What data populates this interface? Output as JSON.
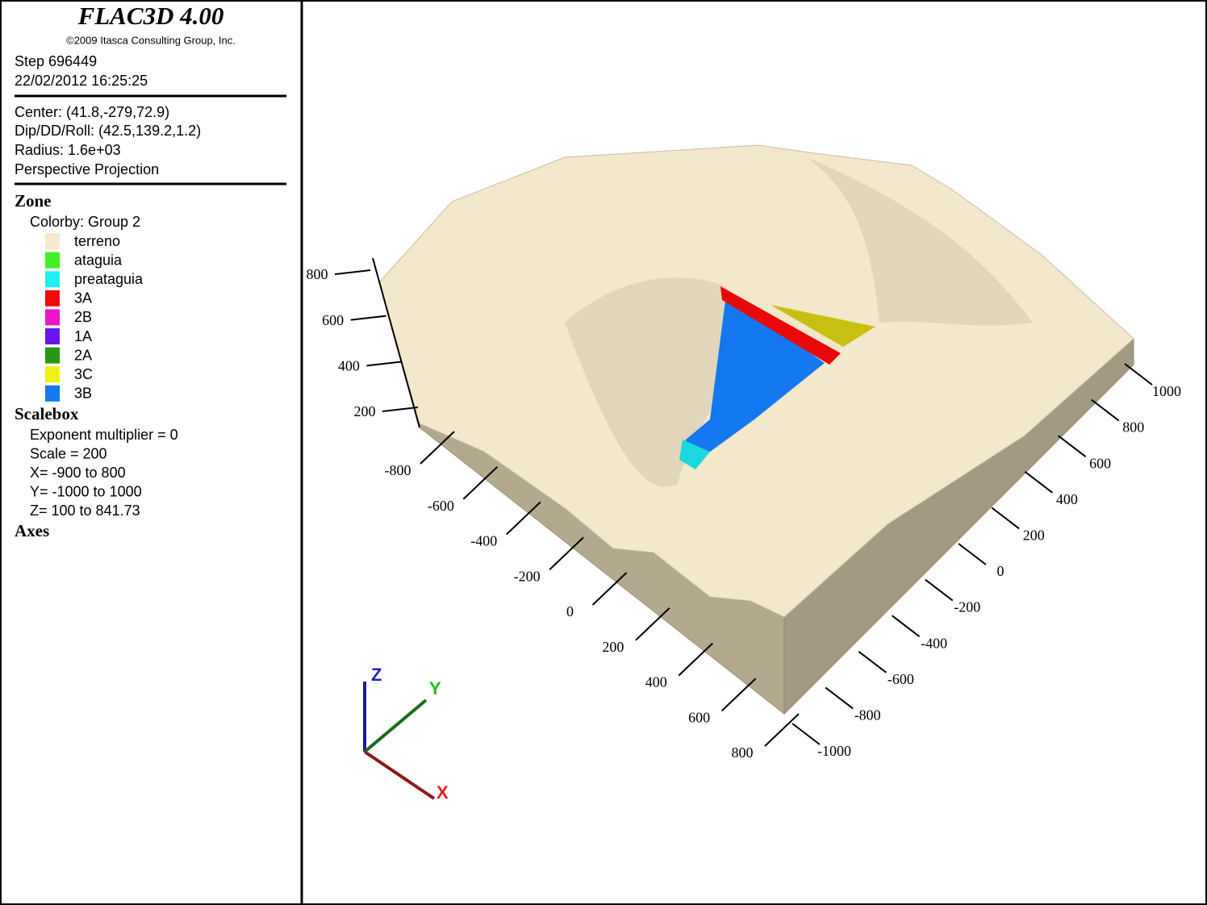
{
  "header": {
    "title": "FLAC3D 4.00",
    "copyright": "©2009 Itasca Consulting Group, Inc.",
    "step": "Step 696449",
    "date": "22/02/2012 16:25:25"
  },
  "view": {
    "lines": [
      "Center: (41.8,-279,72.9)",
      "Dip/DD/Roll: (42.5,139.2,1.2)",
      "Radius: 1.6e+03",
      "Perspective Projection"
    ]
  },
  "zone": {
    "heading": "Zone",
    "colorby": "Colorby: Group 2",
    "legend": [
      {
        "label": "terreno",
        "color": "#f7e9cc"
      },
      {
        "label": "ataguia",
        "color": "#44f025"
      },
      {
        "label": "preataguia",
        "color": "#1cf0f0"
      },
      {
        "label": "3A",
        "color": "#f00a0a"
      },
      {
        "label": "2B",
        "color": "#f014c8"
      },
      {
        "label": "1A",
        "color": "#6a14f0"
      },
      {
        "label": "2A",
        "color": "#2a9618"
      },
      {
        "label": "3C",
        "color": "#f0f014"
      },
      {
        "label": "3B",
        "color": "#1478f0"
      }
    ]
  },
  "scalebox": {
    "heading": "Scalebox",
    "lines": [
      "Exponent multiplier = 0",
      "Scale = 200",
      "X= -900 to 800",
      "Y= -1000 to 1000",
      "Z= 100 to 841.73"
    ]
  },
  "axes": {
    "heading": "Axes",
    "z_ticks": [
      800,
      600,
      400,
      200
    ],
    "x_ticks": [
      -800,
      -600,
      -400,
      -200,
      0,
      200,
      400,
      600,
      800
    ],
    "y_ticks": [
      1000,
      800,
      600,
      400,
      200,
      0,
      -200,
      -400,
      -600,
      -800,
      -1000
    ],
    "triad": {
      "x": "X",
      "y": "Y",
      "z": "Z"
    }
  }
}
